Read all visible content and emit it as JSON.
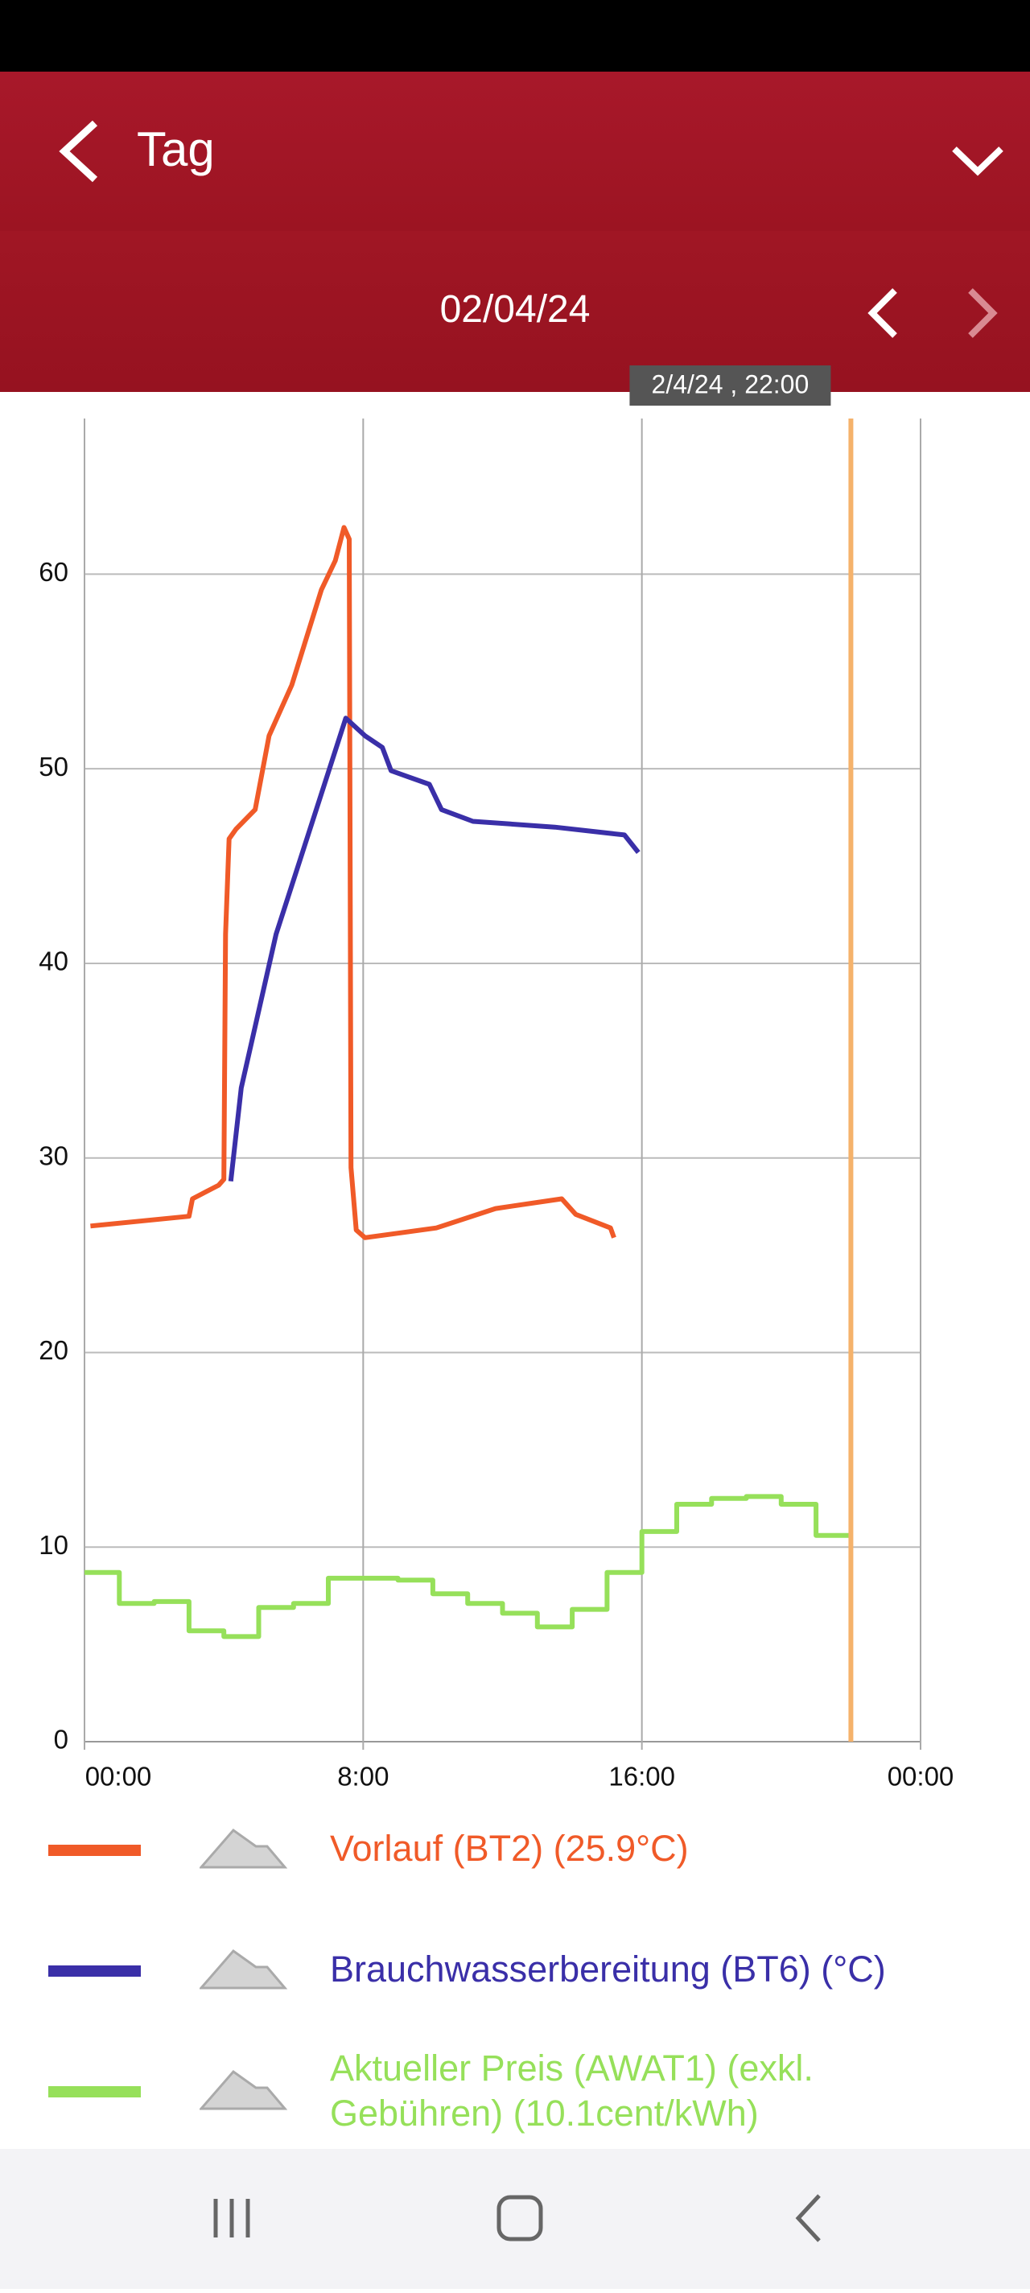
{
  "header": {
    "title": "Tag"
  },
  "date_bar": {
    "date": "02/04/24"
  },
  "chart_data": {
    "type": "line",
    "cursor_label": "2/4/24 , 22:00",
    "cursor_x": 22,
    "cursor_color": "#f5b26b",
    "xlim": [
      0,
      24
    ],
    "xticks": [
      {
        "value": 0,
        "label": "00:00"
      },
      {
        "value": 8,
        "label": "8:00"
      },
      {
        "value": 16,
        "label": "16:00"
      },
      {
        "value": 24,
        "label": "00:00"
      }
    ],
    "ylim": [
      0,
      68
    ],
    "yticks": [
      0,
      10,
      20,
      30,
      40,
      50,
      60
    ],
    "grid": true,
    "series": [
      {
        "name": "Vorlauf (BT2) (25.9°C)",
        "color": "#f05a28",
        "x": [
          0.17,
          3.0,
          3.1,
          3.85,
          4.0,
          4.05,
          4.15,
          4.35,
          4.9,
          5.3,
          5.95,
          6.8,
          7.2,
          7.45,
          7.6,
          7.65,
          7.8,
          8.05,
          10.1,
          11.8,
          13.7,
          14.1,
          15.1,
          15.2
        ],
        "values": [
          26.5,
          27.0,
          27.9,
          28.6,
          28.9,
          41.5,
          46.4,
          46.9,
          47.9,
          51.7,
          54.3,
          59.2,
          60.7,
          62.4,
          61.8,
          29.5,
          26.3,
          25.9,
          26.4,
          27.4,
          27.9,
          27.1,
          26.4,
          25.9
        ]
      },
      {
        "name": "Brauchwasserbereitung (BT6) (°C)",
        "color": "#3a2fa8",
        "x": [
          4.2,
          4.5,
          5.5,
          7.5,
          8.05,
          8.55,
          8.8,
          9.9,
          10.25,
          11.15,
          13.5,
          15.5,
          15.9
        ],
        "values": [
          28.8,
          33.6,
          41.5,
          52.6,
          51.7,
          51.1,
          49.9,
          49.2,
          47.9,
          47.3,
          47.0,
          46.6,
          45.7
        ]
      },
      {
        "name": "Aktueller Preis (AWAT1) (exkl. Gebühren) (10.1cent/kWh)",
        "color": "#96e05a",
        "x": [
          0,
          1,
          1,
          2,
          2,
          3,
          3,
          4,
          4,
          5,
          5,
          6,
          6,
          7,
          7,
          8,
          8,
          9,
          9,
          10,
          10,
          11,
          11,
          12,
          12,
          13,
          13,
          14,
          14,
          15,
          15,
          16,
          16,
          17,
          17,
          18,
          18,
          19,
          19,
          20,
          20,
          21,
          21,
          22
        ],
        "values": [
          8.7,
          8.7,
          7.1,
          7.1,
          7.2,
          7.2,
          5.7,
          5.7,
          5.4,
          5.4,
          6.9,
          6.9,
          7.1,
          7.1,
          8.4,
          8.4,
          8.4,
          8.4,
          8.3,
          8.3,
          7.6,
          7.6,
          7.1,
          7.1,
          6.6,
          6.6,
          5.9,
          5.9,
          6.8,
          6.8,
          8.7,
          8.7,
          10.8,
          10.8,
          12.2,
          12.2,
          12.5,
          12.5,
          12.6,
          12.6,
          12.2,
          12.2,
          10.6,
          10.6
        ]
      }
    ]
  }
}
